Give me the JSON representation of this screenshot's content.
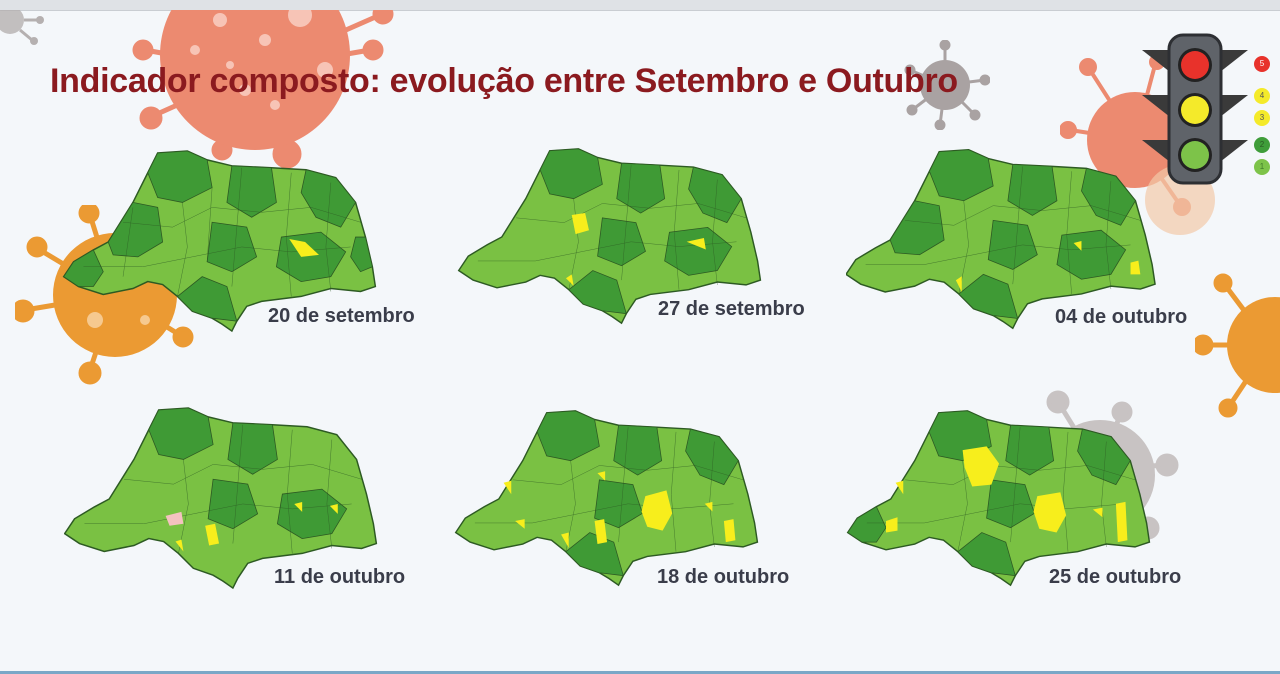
{
  "slide": {
    "title": "Indicador composto: evolução entre Setembro e Outubro"
  },
  "legend": {
    "levels": [
      {
        "label": "5",
        "color": "#e8322b"
      },
      {
        "label": "4",
        "color": "#f4ea2a"
      },
      {
        "label": "3",
        "color": "#f4ea2a"
      },
      {
        "label": "2",
        "color": "#3f9d3a"
      },
      {
        "label": "1",
        "color": "#7dc349"
      }
    ]
  },
  "colors": {
    "title": "#8b1a1f",
    "map_dark_green": "#3f9a35",
    "map_light_green": "#7ac143",
    "map_yellow": "#f7ee1c",
    "map_border": "#2d5a23"
  },
  "maps": [
    {
      "date": "20 de setembro",
      "icon": "rn-state-map"
    },
    {
      "date": "27 de setembro",
      "icon": "rn-state-map"
    },
    {
      "date": "04 de outubro",
      "icon": "rn-state-map"
    },
    {
      "date": "11 de outubro",
      "icon": "rn-state-map"
    },
    {
      "date": "18 de outubro",
      "icon": "rn-state-map"
    },
    {
      "date": "25 de outubro",
      "icon": "rn-state-map"
    }
  ]
}
